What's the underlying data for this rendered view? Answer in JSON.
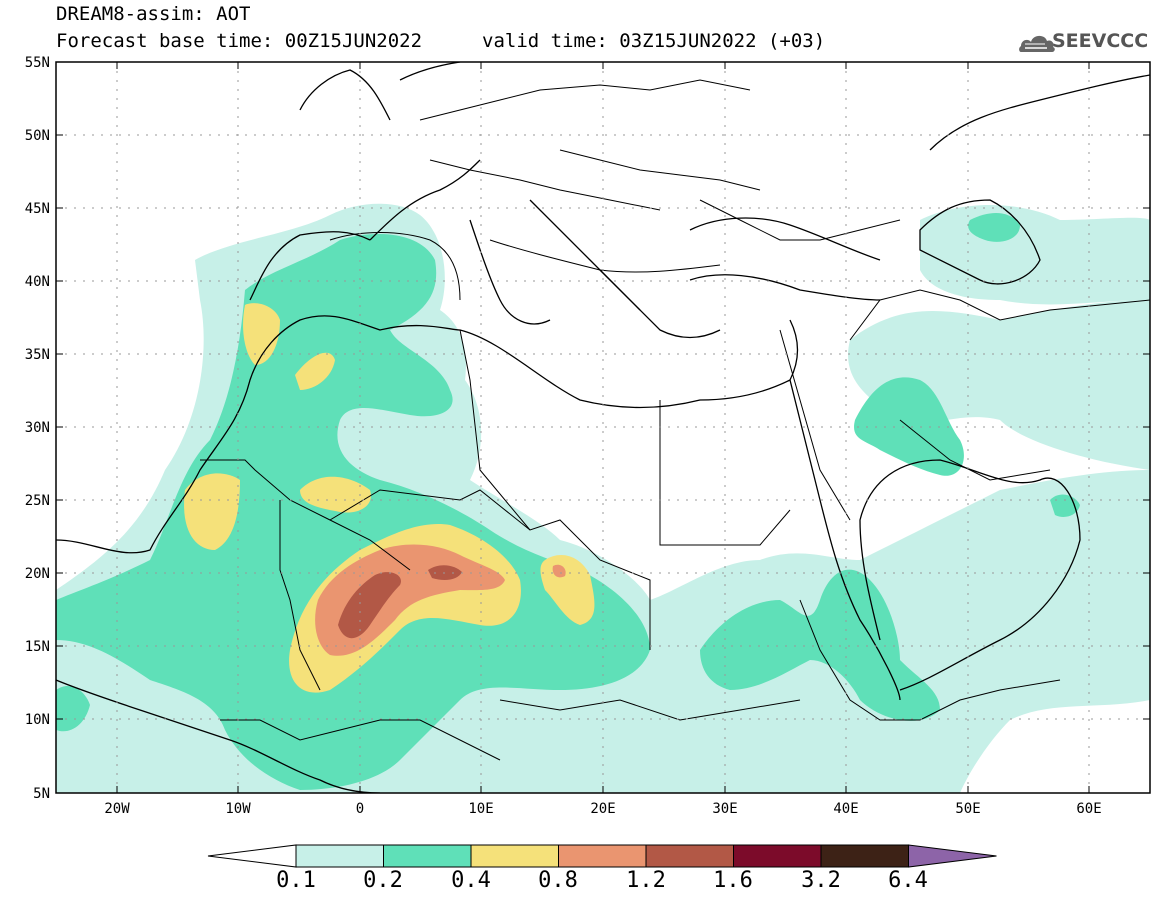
{
  "header": {
    "title": "DREAM8-assim: AOT",
    "base_time_label": "Forecast base time: 00Z15JUN2022",
    "valid_time_label": "valid time: 03Z15JUN2022 (+03)",
    "logo_text": "SEEVCCC"
  },
  "map": {
    "lat_labels": [
      "55N",
      "50N",
      "45N",
      "40N",
      "35N",
      "30N",
      "25N",
      "20N",
      "15N",
      "10N",
      "5N"
    ],
    "lon_labels": [
      "20W",
      "10W",
      "0",
      "10E",
      "20E",
      "30E",
      "40E",
      "50E",
      "60E"
    ],
    "lon_range": [
      -25,
      65
    ],
    "lat_range": [
      5,
      55
    ]
  },
  "legend": {
    "levels": [
      "0.1",
      "0.2",
      "0.4",
      "0.8",
      "1.2",
      "1.6",
      "3.2",
      "6.4"
    ],
    "colors": [
      "#ffffff",
      "#c7f0e8",
      "#5fe0b8",
      "#f5e17a",
      "#ea9570",
      "#b25846",
      "#7c0b2a",
      "#3d2216",
      "#8d64a8"
    ]
  }
}
